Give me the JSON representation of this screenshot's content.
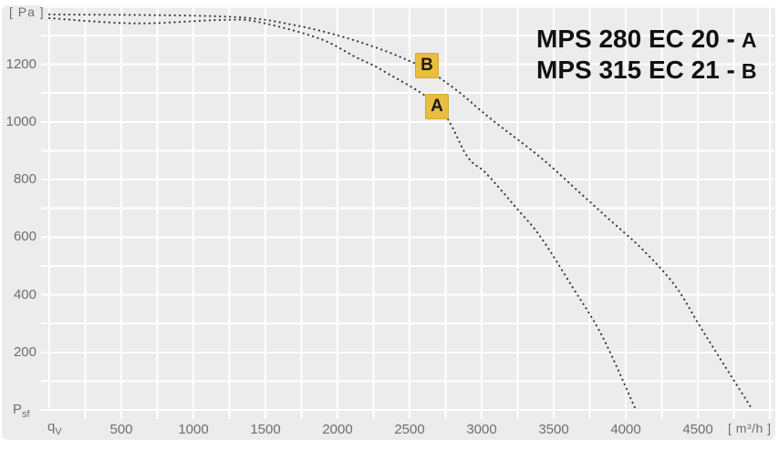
{
  "colors": {
    "panel_bg": "#ececec",
    "grid": "#ffffff",
    "curve": "#3d3d3d",
    "badge_bg": "#e9bd3e",
    "tick_text": "#6e6e6e",
    "legend_text": "#111111"
  },
  "axes": {
    "y_unit": "[ Pa ]",
    "x_unit": "[ m³/h ]",
    "y_origin_label": {
      "base": "P",
      "sub": "sf"
    },
    "x_origin_label": {
      "base": "q",
      "sub": "V"
    },
    "y_ticks": [
      200,
      400,
      600,
      800,
      1000,
      1200
    ],
    "x_ticks": [
      500,
      1000,
      1500,
      2000,
      2500,
      3000,
      3500,
      4000,
      4500
    ]
  },
  "legend": {
    "rows": [
      {
        "model": "MPS 280 EC 20 -",
        "letter": "A"
      },
      {
        "model": "MPS 315 EC 21 -",
        "letter": "B"
      }
    ]
  },
  "badges": [
    {
      "label": "B"
    },
    {
      "label": "A"
    }
  ],
  "chart_data": {
    "type": "line",
    "title": "",
    "xlabel": "qV [m³/h]",
    "ylabel": "Psf [Pa]",
    "xlim": [
      0,
      5000
    ],
    "ylim": [
      0,
      1400
    ],
    "x_tick_step": 500,
    "y_tick_step": 200,
    "x_grid_step": 250,
    "y_grid_step": 100,
    "grid": true,
    "line_style": "dotted",
    "legend_position": "top-right",
    "series": [
      {
        "name": "MPS 280 EC 20",
        "label": "A",
        "points": [
          [
            0,
            1360
          ],
          [
            600,
            1342
          ],
          [
            1200,
            1354
          ],
          [
            1450,
            1347
          ],
          [
            1870,
            1290
          ],
          [
            2130,
            1224
          ],
          [
            2320,
            1176
          ],
          [
            2700,
            1053
          ],
          [
            2900,
            880
          ],
          [
            3030,
            822
          ],
          [
            3250,
            696
          ],
          [
            3410,
            600
          ],
          [
            3630,
            427
          ],
          [
            3840,
            253
          ],
          [
            4070,
            0
          ]
        ]
      },
      {
        "name": "MPS 315 EC 21",
        "label": "B",
        "points": [
          [
            0,
            1373
          ],
          [
            1200,
            1366
          ],
          [
            1680,
            1338
          ],
          [
            2130,
            1281
          ],
          [
            2540,
            1202
          ],
          [
            2800,
            1120
          ],
          [
            3060,
            1012
          ],
          [
            3410,
            876
          ],
          [
            3690,
            750
          ],
          [
            3880,
            664
          ],
          [
            4110,
            560
          ],
          [
            4340,
            433
          ],
          [
            4510,
            294
          ],
          [
            4680,
            158
          ],
          [
            4880,
            0
          ]
        ]
      }
    ]
  }
}
